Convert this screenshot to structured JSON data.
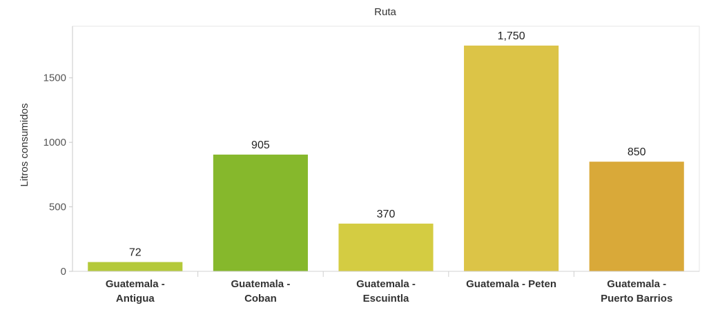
{
  "chart_data": {
    "type": "bar",
    "title": "Ruta",
    "xlabel": "",
    "ylabel": "Litros consumidos",
    "categories": [
      "Guatemala - Antigua",
      "Guatemala - Coban",
      "Guatemala - Escuintla",
      "Guatemala - Peten",
      "Guatemala - Puerto Barrios"
    ],
    "category_label_lines": [
      [
        "Guatemala -",
        "Antigua"
      ],
      [
        "Guatemala -",
        "Coban"
      ],
      [
        "Guatemala -",
        "Escuintla"
      ],
      [
        "Guatemala - Peten"
      ],
      [
        "Guatemala -",
        "Puerto Barrios"
      ]
    ],
    "values": [
      72,
      905,
      370,
      1750,
      850
    ],
    "value_labels": [
      "72",
      "905",
      "370",
      "1,750",
      "850"
    ],
    "bar_colors": [
      "#b4c93a",
      "#86b82c",
      "#d4cc42",
      "#dcc447",
      "#d9a939"
    ],
    "ylim": [
      0,
      1900
    ],
    "yticks": [
      0,
      500,
      1000,
      1500
    ],
    "ytick_labels": [
      "0",
      "500",
      "1000",
      "1500"
    ],
    "grid": false,
    "legend": "none"
  }
}
